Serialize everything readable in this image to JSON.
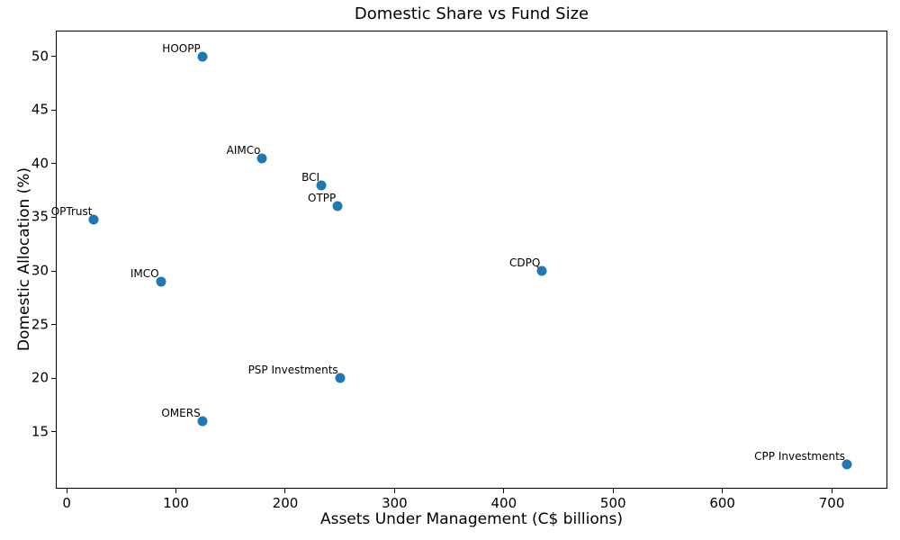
{
  "chart_data": {
    "type": "scatter",
    "title": "Domestic Share vs Fund Size",
    "xlabel": "Assets Under Management (C$ billions)",
    "ylabel": "Domestic Allocation (%)",
    "xlim": [
      -10,
      751
    ],
    "ylim": [
      9.7,
      52.4
    ],
    "xticks": [
      0,
      100,
      200,
      300,
      400,
      500,
      600,
      700
    ],
    "yticks": [
      15,
      20,
      25,
      30,
      35,
      40,
      45,
      50
    ],
    "grid": false,
    "legend": "none",
    "marker_color": "#1f77b4",
    "text_color": "#000000",
    "background_color": "#ffffff",
    "points": [
      {
        "label": "HOOPP",
        "x": 124,
        "y": 50
      },
      {
        "label": "AIMCo",
        "x": 179,
        "y": 40.5
      },
      {
        "label": "BCI",
        "x": 233,
        "y": 38
      },
      {
        "label": "OTPP",
        "x": 248,
        "y": 36
      },
      {
        "label": "OPTrust",
        "x": 25,
        "y": 34.8
      },
      {
        "label": "CDPQ",
        "x": 435,
        "y": 30
      },
      {
        "label": "IMCO",
        "x": 86,
        "y": 29
      },
      {
        "label": "PSP Investments",
        "x": 250,
        "y": 20
      },
      {
        "label": "OMERS",
        "x": 124,
        "y": 16
      },
      {
        "label": "CPP Investments",
        "x": 714,
        "y": 12
      }
    ]
  }
}
